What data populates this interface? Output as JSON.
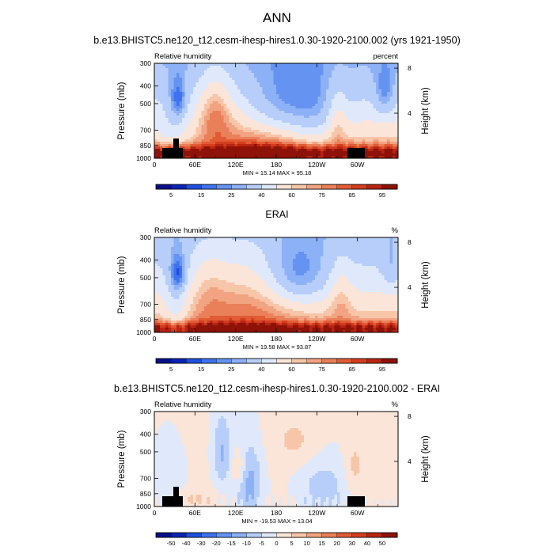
{
  "figure": {
    "main_title": "ANN"
  },
  "palettes": {
    "rh": [
      "#08108a",
      "#0b24b8",
      "#1f4fe0",
      "#3e73ef",
      "#6593f2",
      "#8db1f6",
      "#b6cef9",
      "#dfe9fb",
      "#fbe5d8",
      "#f7c5a8",
      "#f2a381",
      "#e9805a",
      "#e15b35",
      "#d33d1d",
      "#b92512",
      "#8e1207"
    ],
    "diff": [
      "#08108a",
      "#0b24b8",
      "#1f4fe0",
      "#3e73ef",
      "#6593f2",
      "#8db1f6",
      "#b6cef9",
      "#dfe9fb",
      "#fbe5d8",
      "#f7c5a8",
      "#f2a381",
      "#e9805a",
      "#e15b35",
      "#d33d1d",
      "#b92512",
      "#8e1207"
    ]
  },
  "chart_data": [
    {
      "type": "heatmap",
      "panel_title": "b.e13.BHISTC5.ne120_t12.cesm-ihesp-hires1.0.30-1920-2100.002 (yrs 1921-1950)",
      "left_label": "Relative humidity",
      "right_label": "percent",
      "ylabel": "Pressure (mb)",
      "y2label": "Height (km)",
      "x_ticks": [
        "0",
        "60E",
        "120E",
        "180",
        "120W",
        "60W"
      ],
      "x_tick_lon": [
        0,
        60,
        120,
        180,
        240,
        300
      ],
      "xlim": [
        0,
        360
      ],
      "y_ticks": [
        "300",
        "400",
        "500",
        "700",
        "850",
        "1000"
      ],
      "y_tick_p": [
        300,
        400,
        500,
        700,
        850,
        1000
      ],
      "ylim": [
        1000,
        300
      ],
      "y2_ticks": [
        "8",
        "4"
      ],
      "y2_tick_km": [
        8,
        4
      ],
      "stats": "MIN = 15.14  MAX = 95.18",
      "min": 15.14,
      "max": 95.18,
      "field": "model",
      "colorbar_labels": [
        "5",
        "15",
        "25",
        "40",
        "60",
        "75",
        "85",
        "95"
      ],
      "colorbar_levels": [
        5,
        10,
        15,
        20,
        25,
        30,
        40,
        50,
        60,
        65,
        70,
        75,
        80,
        85,
        90,
        95
      ],
      "palette": "rh"
    },
    {
      "type": "heatmap",
      "panel_title": "ERAI",
      "left_label": "Relative humidity",
      "right_label": "%",
      "ylabel": "Pressure (mb)",
      "y2label": "Height (km)",
      "x_ticks": [
        "0",
        "60E",
        "120E",
        "180",
        "120W",
        "60W"
      ],
      "x_tick_lon": [
        0,
        60,
        120,
        180,
        240,
        300
      ],
      "xlim": [
        0,
        360
      ],
      "y_ticks": [
        "300",
        "400",
        "500",
        "700",
        "850",
        "1000"
      ],
      "y_tick_p": [
        300,
        400,
        500,
        700,
        850,
        1000
      ],
      "ylim": [
        1000,
        300
      ],
      "y2_ticks": [
        "8",
        "4"
      ],
      "y2_tick_km": [
        8,
        4
      ],
      "stats": "MIN = 19.58  MAX = 93.87",
      "min": 19.58,
      "max": 93.87,
      "field": "obs",
      "colorbar_labels": [
        "5",
        "15",
        "25",
        "40",
        "60",
        "75",
        "85",
        "95"
      ],
      "colorbar_levels": [
        5,
        10,
        15,
        20,
        25,
        30,
        40,
        50,
        60,
        65,
        70,
        75,
        80,
        85,
        90,
        95
      ],
      "palette": "rh"
    },
    {
      "type": "heatmap",
      "panel_title": "b.e13.BHISTC5.ne120_t12.cesm-ihesp-hires1.0.30-1920-2100.002 - ERAI",
      "left_label": "Relative humidity",
      "right_label": "%",
      "ylabel": "Pressure (mb)",
      "y2label": "Height (km)",
      "x_ticks": [
        "0",
        "60E",
        "120E",
        "180",
        "120W",
        "60W"
      ],
      "x_tick_lon": [
        0,
        60,
        120,
        180,
        240,
        300
      ],
      "xlim": [
        0,
        360
      ],
      "y_ticks": [
        "300",
        "400",
        "500",
        "700",
        "850",
        "1000"
      ],
      "y_tick_p": [
        300,
        400,
        500,
        700,
        850,
        1000
      ],
      "ylim": [
        1000,
        300
      ],
      "y2_ticks": [
        "8",
        "4"
      ],
      "y2_tick_km": [
        8,
        4
      ],
      "stats": "MIN = -19.53  MAX = 13.04",
      "min": -19.53,
      "max": 13.04,
      "field": "diff",
      "colorbar_labels": [
        "-50",
        "-40",
        "-30",
        "-20",
        "-15",
        "-10",
        "-5",
        "0",
        "5",
        "10",
        "15",
        "20",
        "30",
        "40",
        "50"
      ],
      "colorbar_levels": [
        -50,
        -40,
        -30,
        -20,
        -15,
        -10,
        -5,
        0,
        5,
        10,
        15,
        20,
        30,
        40,
        50
      ],
      "palette": "diff"
    }
  ]
}
